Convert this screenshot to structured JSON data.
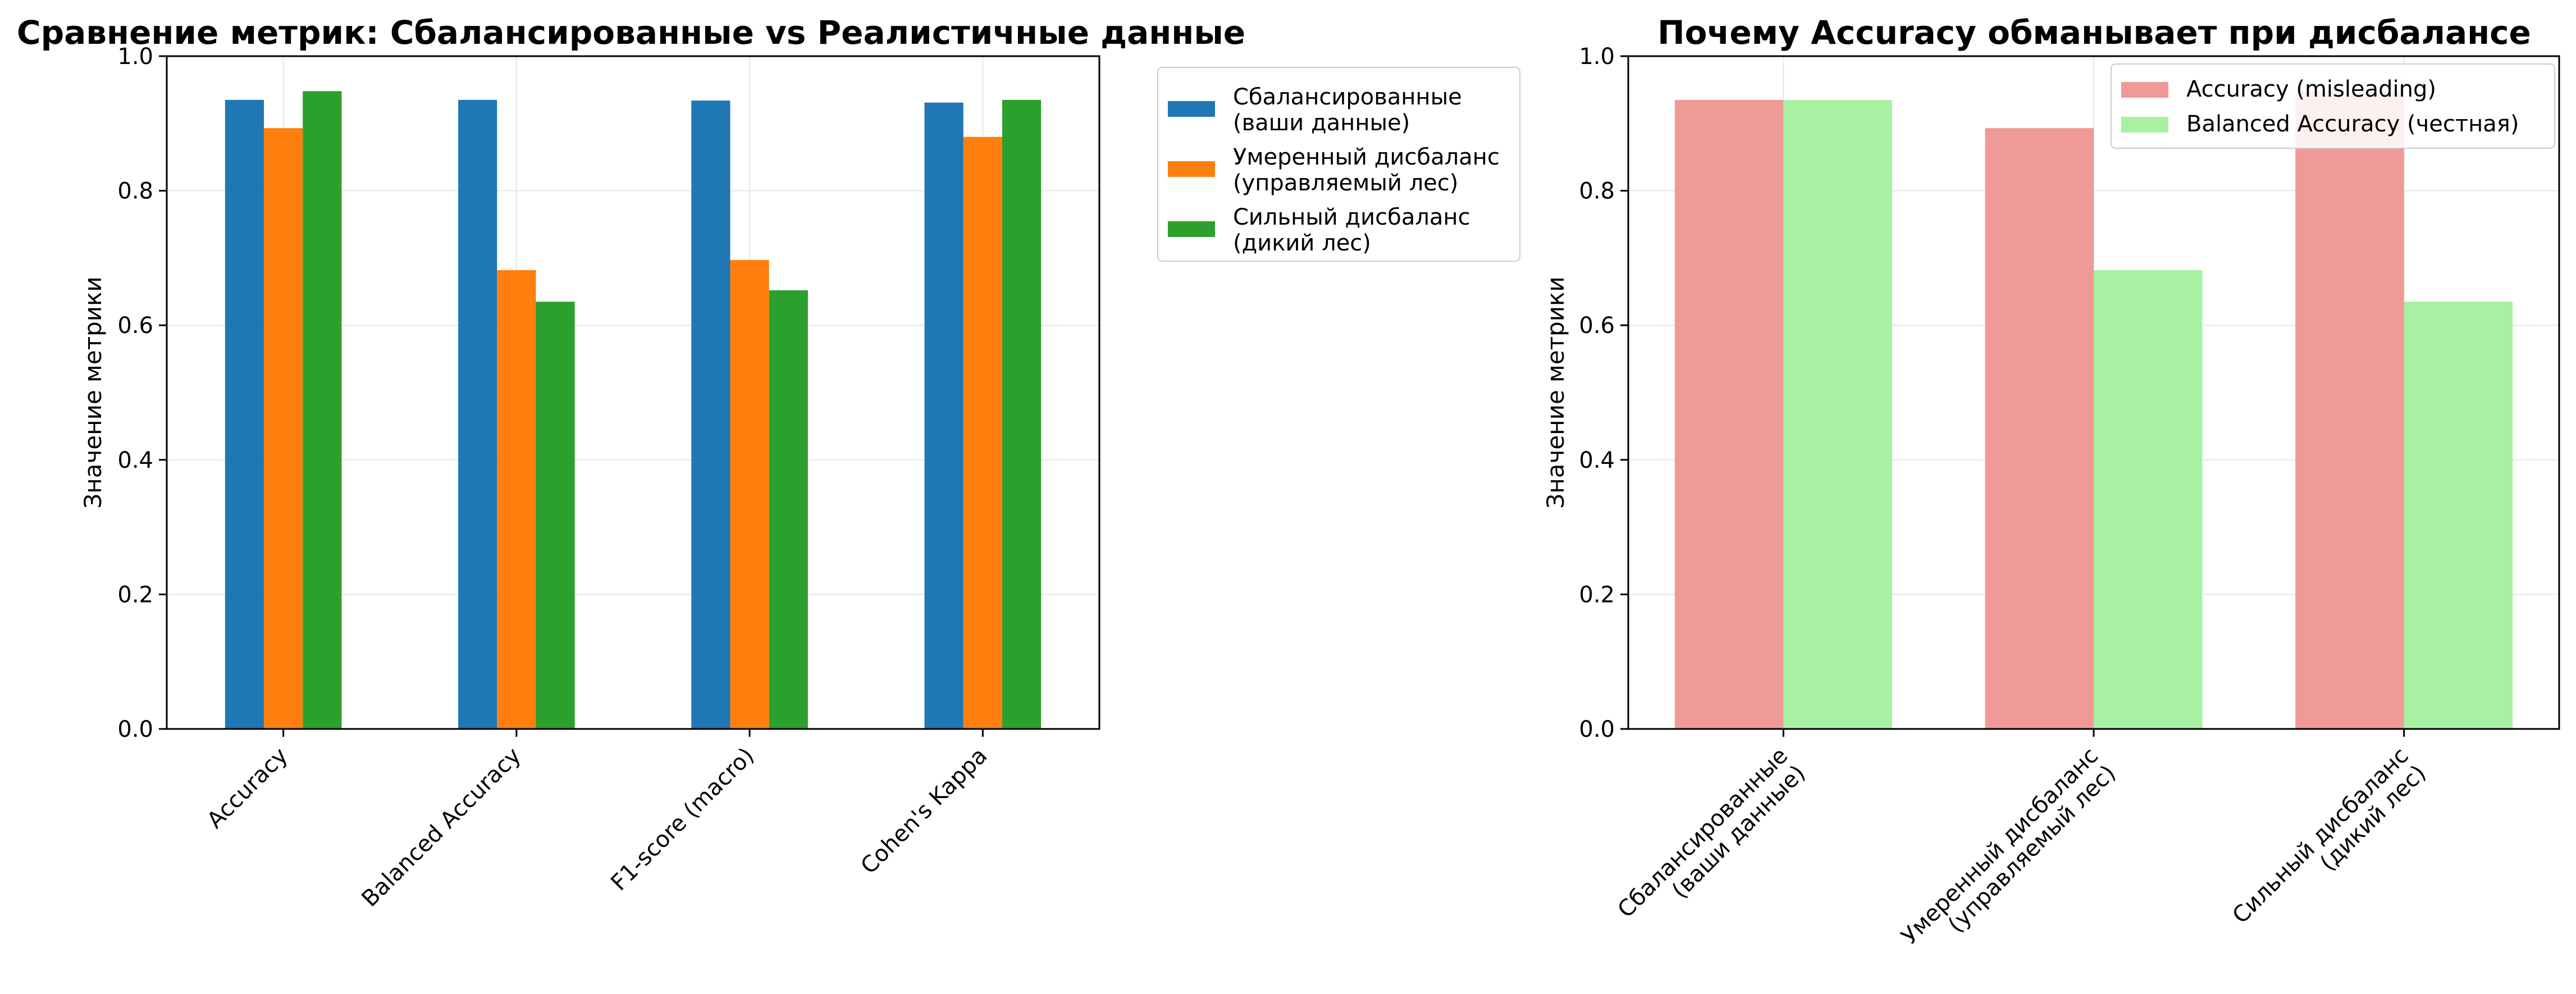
{
  "chart_data": [
    {
      "type": "bar",
      "title": "Сравнение метрик: Сбалансированные vs Реалистичные данные",
      "xlabel": "",
      "ylabel": "Значение метрики",
      "ylim": [
        0,
        1.0
      ],
      "yticks": [
        "0.0",
        "0.2",
        "0.4",
        "0.6",
        "0.8",
        "1.0"
      ],
      "grid": true,
      "legend_placement": "outside-top-right",
      "categories": [
        "Accuracy",
        "Balanced Accuracy",
        "F1-score (macro)",
        "Cohen's Kappa"
      ],
      "series": [
        {
          "name": "Сбалансированные\n(ваши данные)",
          "color": "#1f77b4",
          "values": [
            0.935,
            0.935,
            0.934,
            0.931
          ]
        },
        {
          "name": "Умеренный дисбаланс\n(управляемый лес)",
          "color": "#ff7f0e",
          "values": [
            0.893,
            0.682,
            0.697,
            0.88
          ]
        },
        {
          "name": "Сильный дисбаланс\n(дикий лес)",
          "color": "#2ca02c",
          "values": [
            0.948,
            0.635,
            0.652,
            0.935
          ]
        }
      ]
    },
    {
      "type": "bar",
      "title": "Почему Accuracy обманывает при дисбалансе",
      "xlabel": "",
      "ylabel": "Значение метрики",
      "ylim": [
        0,
        1.0
      ],
      "yticks": [
        "0.0",
        "0.2",
        "0.4",
        "0.6",
        "0.8",
        "1.0"
      ],
      "grid": true,
      "legend_placement": "upper-right",
      "categories": [
        "Сбалансированные\n(ваши данные)",
        "Умеренный дисбаланс\n(управляемый лес)",
        "Сильный дисбаланс\n(дикий лес)"
      ],
      "series": [
        {
          "name": "Accuracy (misleading)",
          "color": "#f09a98",
          "values": [
            0.935,
            0.893,
            0.948
          ]
        },
        {
          "name": "Balanced Accuracy (честная)",
          "color": "#a8f0a2",
          "values": [
            0.935,
            0.682,
            0.635
          ]
        }
      ]
    }
  ]
}
